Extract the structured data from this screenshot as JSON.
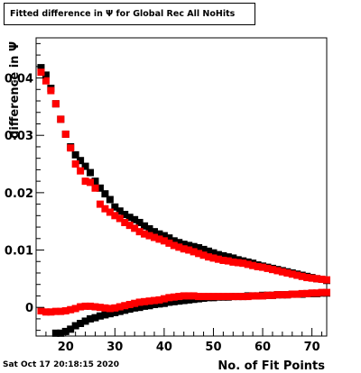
{
  "canvas": {
    "title": "Fitted difference in  Ψ  for Global Rec All NoHits",
    "timestamp": "Sat Oct 17 20:18:15 2020"
  },
  "chart_data": {
    "type": "scatter",
    "title": "Fitted difference in  Ψ  for Global Rec All NoHits",
    "xlabel": "No. of Fit Points",
    "ylabel": "difference in  Ψ",
    "xlim": [
      14,
      73
    ],
    "ylim": [
      -0.005,
      0.047
    ],
    "x_ticks": [
      20,
      30,
      40,
      50,
      60,
      70
    ],
    "y_ticks": [
      0,
      0.01,
      0.02,
      0.03,
      0.04
    ],
    "y_tick_labels": [
      "0",
      "0.01",
      "0.02",
      "0.03",
      "0.04"
    ],
    "grid": false,
    "legend": "none",
    "marker": "square",
    "series": [
      {
        "color": "#000000",
        "group": "upper-1",
        "points": [
          [
            15,
            0.0418
          ],
          [
            16,
            0.0405
          ],
          [
            17,
            0.0382
          ],
          [
            18,
            0.0355
          ],
          [
            19,
            0.0328
          ],
          [
            20,
            0.0302
          ],
          [
            21,
            0.028
          ],
          [
            22,
            0.0266
          ],
          [
            23,
            0.0256
          ],
          [
            24,
            0.0246
          ],
          [
            25,
            0.0235
          ],
          [
            26,
            0.022
          ],
          [
            27,
            0.0208
          ],
          [
            28,
            0.0198
          ],
          [
            29,
            0.0188
          ],
          [
            30,
            0.0175
          ],
          [
            31,
            0.0168
          ],
          [
            32,
            0.0162
          ],
          [
            33,
            0.0157
          ],
          [
            34,
            0.0153
          ],
          [
            35,
            0.0148
          ],
          [
            36,
            0.0142
          ],
          [
            37,
            0.0137
          ],
          [
            38,
            0.0132
          ],
          [
            39,
            0.0128
          ],
          [
            40,
            0.0125
          ],
          [
            41,
            0.0121
          ],
          [
            42,
            0.0116
          ],
          [
            43,
            0.0113
          ],
          [
            44,
            0.011
          ],
          [
            45,
            0.0108
          ],
          [
            46,
            0.0106
          ],
          [
            47,
            0.0104
          ],
          [
            48,
            0.0101
          ],
          [
            49,
            0.0098
          ],
          [
            50,
            0.0095
          ],
          [
            51,
            0.0092
          ],
          [
            52,
            0.009
          ],
          [
            53,
            0.0088
          ],
          [
            54,
            0.0086
          ],
          [
            55,
            0.0083
          ],
          [
            56,
            0.0081
          ],
          [
            57,
            0.0079
          ],
          [
            58,
            0.0077
          ],
          [
            59,
            0.0074
          ],
          [
            60,
            0.0072
          ],
          [
            61,
            0.007
          ],
          [
            62,
            0.0068
          ],
          [
            63,
            0.0066
          ],
          [
            64,
            0.0064
          ],
          [
            65,
            0.0062
          ],
          [
            66,
            0.006
          ],
          [
            67,
            0.0058
          ],
          [
            68,
            0.0056
          ],
          [
            69,
            0.0054
          ],
          [
            70,
            0.0052
          ],
          [
            71,
            0.005
          ],
          [
            72,
            0.0049
          ],
          [
            73,
            0.0047
          ]
        ]
      },
      {
        "color": "#ff0000",
        "group": "upper-2",
        "points": [
          [
            15,
            0.041
          ],
          [
            16,
            0.0395
          ],
          [
            17,
            0.0378
          ],
          [
            18,
            0.0355
          ],
          [
            19,
            0.0328
          ],
          [
            20,
            0.0302
          ],
          [
            21,
            0.0278
          ],
          [
            22,
            0.025
          ],
          [
            23,
            0.0238
          ],
          [
            24,
            0.022
          ],
          [
            25,
            0.0218
          ],
          [
            26,
            0.0208
          ],
          [
            27,
            0.018
          ],
          [
            28,
            0.0172
          ],
          [
            29,
            0.0166
          ],
          [
            30,
            0.016
          ],
          [
            31,
            0.0155
          ],
          [
            32,
            0.0148
          ],
          [
            33,
            0.0143
          ],
          [
            34,
            0.0138
          ],
          [
            35,
            0.0132
          ],
          [
            36,
            0.0128
          ],
          [
            37,
            0.0125
          ],
          [
            38,
            0.0122
          ],
          [
            39,
            0.0119
          ],
          [
            40,
            0.0116
          ],
          [
            41,
            0.0112
          ],
          [
            42,
            0.0108
          ],
          [
            43,
            0.0105
          ],
          [
            44,
            0.0102
          ],
          [
            45,
            0.01
          ],
          [
            46,
            0.0097
          ],
          [
            47,
            0.0094
          ],
          [
            48,
            0.0091
          ],
          [
            49,
            0.0088
          ],
          [
            50,
            0.0086
          ],
          [
            51,
            0.0084
          ],
          [
            52,
            0.0082
          ],
          [
            53,
            0.0081
          ],
          [
            54,
            0.0079
          ],
          [
            55,
            0.0078
          ],
          [
            56,
            0.0077
          ],
          [
            57,
            0.0075
          ],
          [
            58,
            0.0073
          ],
          [
            59,
            0.0071
          ],
          [
            60,
            0.007
          ],
          [
            61,
            0.0068
          ],
          [
            62,
            0.0066
          ],
          [
            63,
            0.0064
          ],
          [
            64,
            0.0062
          ],
          [
            65,
            0.006
          ],
          [
            66,
            0.0058
          ],
          [
            67,
            0.0056
          ],
          [
            68,
            0.0054
          ],
          [
            69,
            0.0052
          ],
          [
            70,
            0.0051
          ],
          [
            71,
            0.005
          ],
          [
            72,
            0.0049
          ],
          [
            73,
            0.0048
          ]
        ]
      },
      {
        "color": "#000000",
        "group": "lower-1",
        "points": [
          [
            18,
            -0.0045
          ],
          [
            19,
            -0.0045
          ],
          [
            20,
            -0.0042
          ],
          [
            21,
            -0.0038
          ],
          [
            22,
            -0.0032
          ],
          [
            23,
            -0.0028
          ],
          [
            24,
            -0.0024
          ],
          [
            25,
            -0.002
          ],
          [
            26,
            -0.0018
          ],
          [
            27,
            -0.0015
          ],
          [
            28,
            -0.0013
          ],
          [
            29,
            -0.0011
          ],
          [
            30,
            -0.0009
          ],
          [
            31,
            -0.0007
          ],
          [
            32,
            -0.0005
          ],
          [
            33,
            -0.0003
          ],
          [
            34,
            -0.0001
          ],
          [
            35,
            0
          ],
          [
            36,
            0.0002
          ],
          [
            37,
            0.0003
          ],
          [
            38,
            0.0005
          ],
          [
            39,
            0.0006
          ],
          [
            40,
            0.0007
          ],
          [
            41,
            0.0009
          ],
          [
            42,
            0.001
          ],
          [
            43,
            0.0011
          ],
          [
            44,
            0.0012
          ],
          [
            45,
            0.0013
          ],
          [
            46,
            0.0014
          ],
          [
            47,
            0.0015
          ],
          [
            48,
            0.0016
          ],
          [
            49,
            0.0017
          ],
          [
            50,
            0.0017
          ],
          [
            51,
            0.0018
          ],
          [
            52,
            0.0018
          ],
          [
            53,
            0.0018
          ],
          [
            54,
            0.0019
          ],
          [
            55,
            0.0019
          ],
          [
            56,
            0.0019
          ],
          [
            57,
            0.002
          ],
          [
            58,
            0.002
          ],
          [
            59,
            0.002
          ],
          [
            60,
            0.0021
          ],
          [
            61,
            0.0021
          ],
          [
            62,
            0.0021
          ],
          [
            63,
            0.0022
          ],
          [
            64,
            0.0022
          ],
          [
            65,
            0.0022
          ],
          [
            66,
            0.0023
          ],
          [
            67,
            0.0023
          ],
          [
            68,
            0.0023
          ],
          [
            69,
            0.0024
          ],
          [
            70,
            0.0024
          ],
          [
            71,
            0.0024
          ],
          [
            72,
            0.0025
          ],
          [
            73,
            0.0025
          ]
        ]
      },
      {
        "color": "#ff0000",
        "group": "lower-2",
        "points": [
          [
            15,
            -0.0006
          ],
          [
            16,
            -0.0008
          ],
          [
            17,
            -0.0008
          ],
          [
            18,
            -0.0007
          ],
          [
            19,
            -0.0007
          ],
          [
            20,
            -0.0006
          ],
          [
            21,
            -0.0004
          ],
          [
            22,
            -0.0002
          ],
          [
            23,
            0.0001
          ],
          [
            24,
            0.0002
          ],
          [
            25,
            0.0002
          ],
          [
            26,
            0.0001
          ],
          [
            27,
            0
          ],
          [
            28,
            -0.0001
          ],
          [
            29,
            -0.0002
          ],
          [
            30,
            -0.0001
          ],
          [
            31,
            0.0001
          ],
          [
            32,
            0.0003
          ],
          [
            33,
            0.0005
          ],
          [
            34,
            0.0007
          ],
          [
            35,
            0.0009
          ],
          [
            36,
            0.001
          ],
          [
            37,
            0.0011
          ],
          [
            38,
            0.0012
          ],
          [
            39,
            0.0013
          ],
          [
            40,
            0.0015
          ],
          [
            41,
            0.0017
          ],
          [
            42,
            0.0018
          ],
          [
            43,
            0.0019
          ],
          [
            44,
            0.002
          ],
          [
            45,
            0.002
          ],
          [
            46,
            0.002
          ],
          [
            47,
            0.0019
          ],
          [
            48,
            0.0019
          ],
          [
            49,
            0.0019
          ],
          [
            50,
            0.0019
          ],
          [
            51,
            0.0019
          ],
          [
            52,
            0.0019
          ],
          [
            53,
            0.0019
          ],
          [
            54,
            0.0019
          ],
          [
            55,
            0.0019
          ],
          [
            56,
            0.0019
          ],
          [
            57,
            0.0019
          ],
          [
            58,
            0.002
          ],
          [
            59,
            0.002
          ],
          [
            60,
            0.002
          ],
          [
            61,
            0.0021
          ],
          [
            62,
            0.0021
          ],
          [
            63,
            0.0022
          ],
          [
            64,
            0.0022
          ],
          [
            65,
            0.0022
          ],
          [
            66,
            0.0023
          ],
          [
            67,
            0.0023
          ],
          [
            68,
            0.0024
          ],
          [
            69,
            0.0024
          ],
          [
            70,
            0.0025
          ],
          [
            71,
            0.0025
          ],
          [
            72,
            0.0026
          ],
          [
            73,
            0.0026
          ]
        ]
      }
    ]
  }
}
